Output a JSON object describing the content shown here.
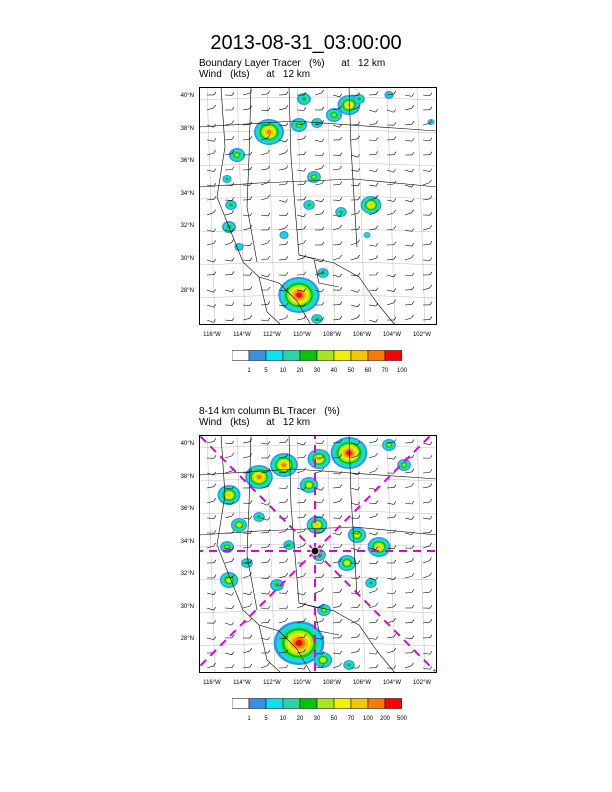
{
  "main_title": "2013-08-31_03:00:00",
  "panels": [
    {
      "title_line1": "Boundary Layer Tracer   (%)      at   12 km",
      "title_line2": "Wind   (kts)      at   12 km",
      "lat_labels": [
        "40°N",
        "38°N",
        "36°N",
        "34°N",
        "32°N",
        "30°N",
        "28°N"
      ],
      "lon_labels": [
        "116°W",
        "114°W",
        "112°W",
        "110°W",
        "108°W",
        "106°W",
        "104°W",
        "102°W"
      ],
      "colorbar_labels": [
        "1",
        "5",
        "10",
        "20",
        "30",
        "40",
        "50",
        "60",
        "70",
        "100"
      ],
      "colorbar_colors": [
        "#ffffff",
        "#3a8fe6",
        "#00e5f0",
        "#25d6a6",
        "#00c800",
        "#a6e61a",
        "#f0f000",
        "#f0c800",
        "#ff7800",
        "#ff0000"
      ]
    },
    {
      "title_line1": "8-14 km column BL Tracer   (%)",
      "title_line2": "Wind   (kts)      at   12 km",
      "lat_labels": [
        "40°N",
        "38°N",
        "36°N",
        "34°N",
        "32°N",
        "30°N",
        "28°N"
      ],
      "lon_labels": [
        "116°W",
        "114°W",
        "112°W",
        "110°W",
        "108°W",
        "106°W",
        "104°W",
        "102°W"
      ],
      "colorbar_labels": [
        "1",
        "5",
        "10",
        "20",
        "30",
        "50",
        "70",
        "100",
        "200",
        "500"
      ],
      "colorbar_colors": [
        "#ffffff",
        "#3a8fe6",
        "#00e5f0",
        "#25d6a6",
        "#00c800",
        "#a6e61a",
        "#f0f000",
        "#f0c800",
        "#ff7800",
        "#ff0000"
      ]
    }
  ]
}
